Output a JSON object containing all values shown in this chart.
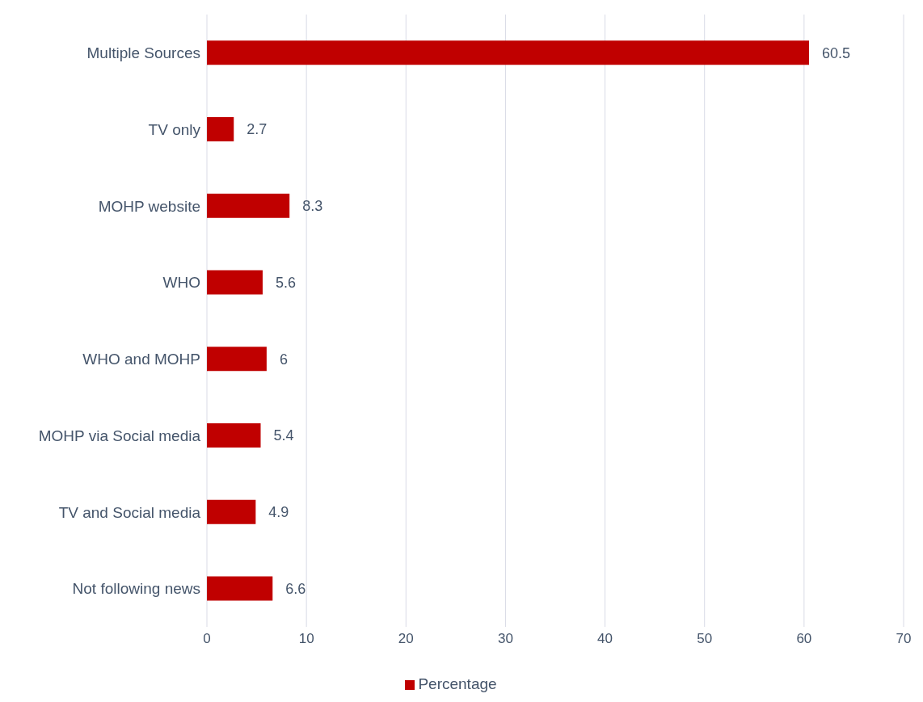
{
  "chart_data": {
    "type": "bar",
    "orientation": "horizontal",
    "categories": [
      "Multiple Sources",
      "TV only",
      "MOHP website",
      "WHO",
      "WHO and MOHP",
      "MOHP via Social media",
      "TV and Social media",
      "Not following news"
    ],
    "series": [
      {
        "name": "Percentage",
        "color": "#c00000",
        "values": [
          60.5,
          2.7,
          8.3,
          5.6,
          6,
          5.4,
          4.9,
          6.6
        ]
      }
    ],
    "xlim": [
      0,
      70
    ],
    "xticks": [
      0,
      10,
      20,
      30,
      40,
      50,
      60,
      70
    ],
    "grid": "x",
    "legend": "bottom",
    "data_labels": true
  }
}
